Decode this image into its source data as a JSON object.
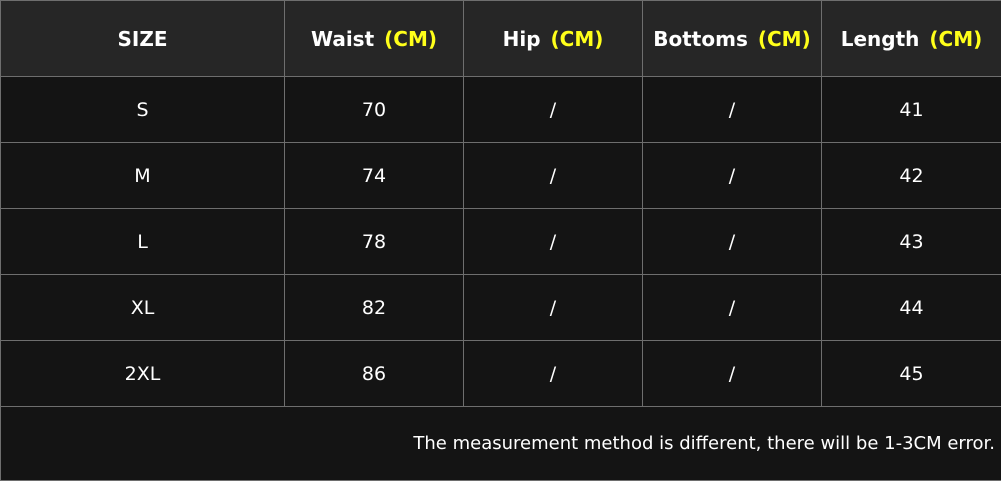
{
  "headers": [
    {
      "label": "SIZE",
      "unit": ""
    },
    {
      "label": "Waist",
      "unit": "(CM)"
    },
    {
      "label": "Hip",
      "unit": "(CM)"
    },
    {
      "label": "Bottoms",
      "unit": "(CM)"
    },
    {
      "label": "Length",
      "unit": "(CM)"
    }
  ],
  "rows": [
    [
      "S",
      "70",
      "/",
      "/",
      "41"
    ],
    [
      "M",
      "74",
      "/",
      "/",
      "42"
    ],
    [
      "L",
      "78",
      "/",
      "/",
      "43"
    ],
    [
      "XL",
      "82",
      "/",
      "/",
      "44"
    ],
    [
      "2XL",
      "86",
      "/",
      "/",
      "45"
    ]
  ],
  "note": "The measurement method is different, there will be 1-3CM error.",
  "colors": {
    "header_bg": "#262626",
    "body_bg": "#141414",
    "unit_text": "#ffff1a",
    "border": "#6e6e6e"
  }
}
